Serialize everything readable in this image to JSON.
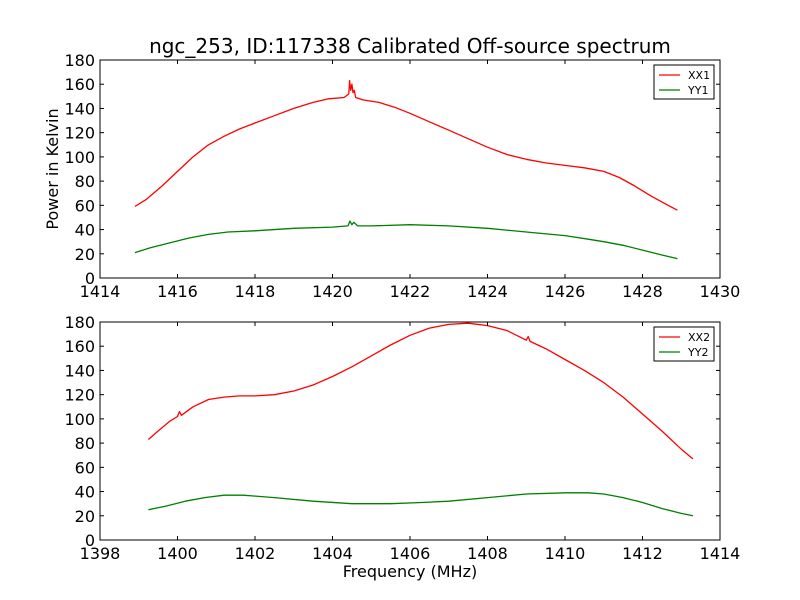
{
  "chart_data": [
    {
      "type": "line",
      "title": "ngc_253, ID:117338 Calibrated Off-source spectrum",
      "xlabel": "",
      "ylabel": "Power in Kelvin",
      "xlim": [
        1414,
        1430
      ],
      "ylim": [
        0,
        180
      ],
      "xticks": [
        "1414",
        "1416",
        "1418",
        "1420",
        "1422",
        "1424",
        "1426",
        "1428",
        "1430"
      ],
      "yticks": [
        "0",
        "20",
        "40",
        "60",
        "80",
        "100",
        "120",
        "140",
        "160",
        "180"
      ],
      "legend_position": "top-right",
      "grid": false,
      "series": [
        {
          "name": "XX1",
          "color": "#ff0000",
          "x": [
            1414.9,
            1415.2,
            1415.6,
            1416.0,
            1416.4,
            1416.8,
            1417.2,
            1417.6,
            1418.0,
            1418.5,
            1419.0,
            1419.5,
            1419.9,
            1420.3,
            1420.42,
            1420.44,
            1420.47,
            1420.5,
            1420.53,
            1420.56,
            1420.6,
            1420.8,
            1421.2,
            1421.6,
            1422.0,
            1422.5,
            1423.0,
            1423.5,
            1424.0,
            1424.5,
            1425.0,
            1425.5,
            1426.0,
            1426.5,
            1427.0,
            1427.4,
            1427.8,
            1428.2,
            1428.6,
            1428.9
          ],
          "y": [
            59,
            65,
            76,
            88,
            100,
            110,
            117,
            123,
            128,
            134,
            140,
            145,
            148,
            149,
            152,
            163,
            155,
            160,
            153,
            155,
            149,
            147,
            145,
            141,
            136,
            129,
            122,
            115,
            108,
            102,
            98,
            95,
            93,
            91,
            88,
            83,
            76,
            68,
            61,
            56
          ]
        },
        {
          "name": "YY1",
          "color": "#007f00",
          "x": [
            1414.9,
            1415.3,
            1415.8,
            1416.3,
            1416.8,
            1417.3,
            1418.0,
            1419.0,
            1420.0,
            1420.4,
            1420.45,
            1420.5,
            1420.55,
            1420.65,
            1421.0,
            1422.0,
            1423.0,
            1424.0,
            1425.0,
            1426.0,
            1426.6,
            1427.0,
            1427.5,
            1428.0,
            1428.5,
            1428.9
          ],
          "y": [
            21,
            25,
            29,
            33,
            36,
            38,
            39,
            41,
            42,
            43,
            47,
            44,
            46,
            43,
            43,
            44,
            43,
            41,
            38,
            35,
            32,
            30,
            27,
            23,
            19,
            16
          ]
        }
      ]
    },
    {
      "type": "line",
      "title": "",
      "xlabel": "Frequency (MHz)",
      "ylabel": "",
      "xlim": [
        1398,
        1414
      ],
      "ylim": [
        0,
        180
      ],
      "xticks": [
        "1398",
        "1400",
        "1402",
        "1404",
        "1406",
        "1408",
        "1410",
        "1412",
        "1414"
      ],
      "yticks": [
        "0",
        "20",
        "40",
        "60",
        "80",
        "100",
        "120",
        "140",
        "160",
        "180"
      ],
      "legend_position": "top-right",
      "grid": false,
      "series": [
        {
          "name": "XX2",
          "color": "#ff0000",
          "x": [
            1399.25,
            1399.5,
            1399.8,
            1400.0,
            1400.05,
            1400.1,
            1400.4,
            1400.8,
            1401.2,
            1401.6,
            1402.0,
            1402.5,
            1403.0,
            1403.5,
            1404.0,
            1404.5,
            1405.0,
            1405.5,
            1406.0,
            1406.5,
            1407.0,
            1407.5,
            1408.0,
            1408.5,
            1409.0,
            1409.05,
            1409.1,
            1409.5,
            1410.0,
            1410.5,
            1411.0,
            1411.5,
            1412.0,
            1412.5,
            1413.0,
            1413.3
          ],
          "y": [
            83,
            90,
            98,
            102,
            106,
            103,
            110,
            116,
            118,
            119,
            119,
            120,
            123,
            128,
            135,
            143,
            152,
            161,
            169,
            175,
            178,
            179,
            177,
            173,
            165,
            168,
            164,
            158,
            149,
            140,
            130,
            118,
            104,
            90,
            75,
            67
          ]
        },
        {
          "name": "YY2",
          "color": "#007f00",
          "x": [
            1399.25,
            1399.7,
            1400.2,
            1400.7,
            1401.2,
            1401.7,
            1402.5,
            1403.5,
            1404.5,
            1405.5,
            1406.3,
            1407.0,
            1408.0,
            1409.0,
            1410.0,
            1410.6,
            1411.0,
            1411.5,
            1412.0,
            1412.5,
            1413.0,
            1413.3
          ],
          "y": [
            25,
            28,
            32,
            35,
            37,
            37,
            35,
            32,
            30,
            30,
            31,
            32,
            35,
            38,
            39,
            39,
            38,
            35,
            31,
            26,
            22,
            20
          ]
        }
      ]
    }
  ]
}
